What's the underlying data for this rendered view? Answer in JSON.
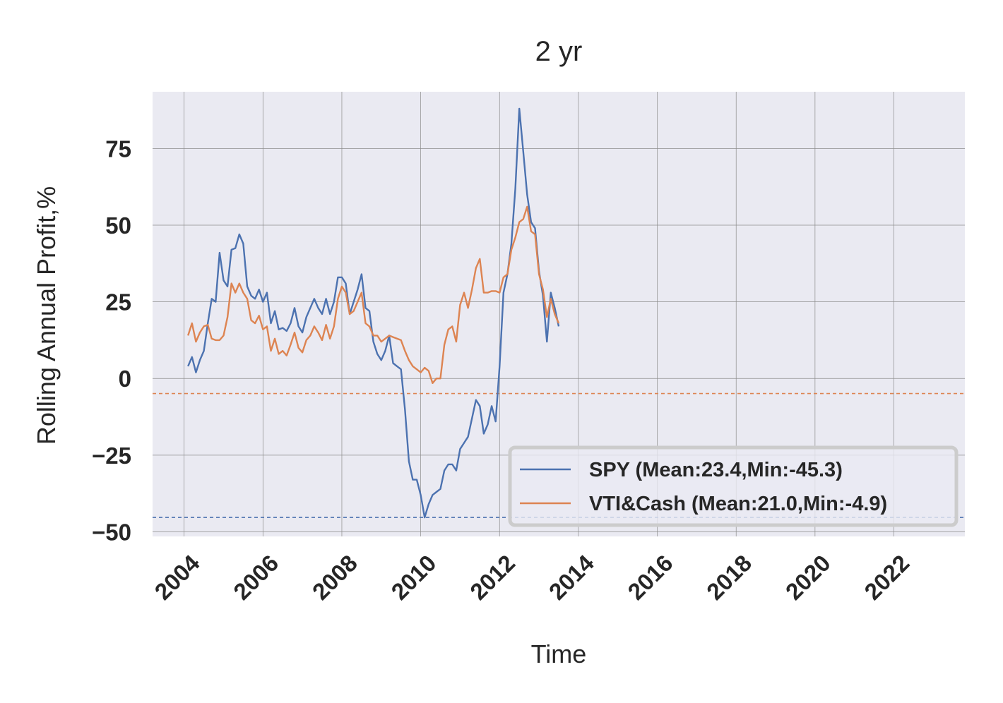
{
  "chart_data": {
    "type": "line",
    "title": "2 yr",
    "xlabel": "Time",
    "ylabel": "Rolling Annual Profit,%",
    "xlim": [
      2003.2,
      2023.8
    ],
    "ylim": [
      -51.5,
      93.5
    ],
    "x_ticks": [
      2004,
      2006,
      2008,
      2010,
      2012,
      2014,
      2016,
      2018,
      2020,
      2022
    ],
    "x_tick_labels": [
      "2004",
      "2006",
      "2008",
      "2010",
      "2012",
      "2014",
      "2016",
      "2018",
      "2020",
      "2022"
    ],
    "y_ticks": [
      -50,
      -25,
      0,
      25,
      50,
      75
    ],
    "y_tick_labels": [
      "−50",
      "−25",
      "0",
      "25",
      "50",
      "75"
    ],
    "grid": true,
    "legend_position": "lower-right",
    "series": [
      {
        "name": "SPY (Mean:23.4,Min:-45.3)",
        "color": "#4c72b0",
        "min_line": -45.3,
        "points": [
          [
            2004.1,
            4
          ],
          [
            2004.2,
            7
          ],
          [
            2004.3,
            2
          ],
          [
            2004.4,
            6
          ],
          [
            2004.5,
            9
          ],
          [
            2004.6,
            18
          ],
          [
            2004.7,
            26
          ],
          [
            2004.8,
            25
          ],
          [
            2004.9,
            41
          ],
          [
            2005.0,
            32
          ],
          [
            2005.1,
            30
          ],
          [
            2005.2,
            42
          ],
          [
            2005.3,
            42.5
          ],
          [
            2005.4,
            47
          ],
          [
            2005.5,
            44
          ],
          [
            2005.6,
            30
          ],
          [
            2005.7,
            27
          ],
          [
            2005.8,
            26
          ],
          [
            2005.9,
            29
          ],
          [
            2006.0,
            25
          ],
          [
            2006.1,
            28
          ],
          [
            2006.2,
            18
          ],
          [
            2006.3,
            22
          ],
          [
            2006.4,
            16
          ],
          [
            2006.5,
            16.5
          ],
          [
            2006.6,
            15.5
          ],
          [
            2006.7,
            18
          ],
          [
            2006.8,
            23
          ],
          [
            2006.9,
            17
          ],
          [
            2007.0,
            15
          ],
          [
            2007.1,
            20
          ],
          [
            2007.2,
            23
          ],
          [
            2007.3,
            26
          ],
          [
            2007.4,
            23
          ],
          [
            2007.5,
            21
          ],
          [
            2007.6,
            26
          ],
          [
            2007.7,
            21
          ],
          [
            2007.8,
            25
          ],
          [
            2007.9,
            33
          ],
          [
            2008.0,
            33
          ],
          [
            2008.1,
            31
          ],
          [
            2008.2,
            21
          ],
          [
            2008.3,
            25
          ],
          [
            2008.4,
            29
          ],
          [
            2008.5,
            34
          ],
          [
            2008.6,
            23
          ],
          [
            2008.7,
            22
          ],
          [
            2008.8,
            12
          ],
          [
            2008.9,
            8
          ],
          [
            2009.0,
            6
          ],
          [
            2009.1,
            9
          ],
          [
            2009.2,
            14
          ],
          [
            2009.3,
            5
          ],
          [
            2009.4,
            4
          ],
          [
            2009.5,
            3
          ],
          [
            2009.6,
            -10
          ],
          [
            2009.7,
            -27
          ],
          [
            2009.8,
            -33
          ],
          [
            2009.9,
            -33
          ],
          [
            2010.0,
            -38
          ],
          [
            2010.1,
            -45.3
          ],
          [
            2010.2,
            -41
          ],
          [
            2010.3,
            -38
          ],
          [
            2010.4,
            -37
          ],
          [
            2010.5,
            -36
          ],
          [
            2010.6,
            -30
          ],
          [
            2010.7,
            -28
          ],
          [
            2010.8,
            -28
          ],
          [
            2010.9,
            -30
          ],
          [
            2011.0,
            -23
          ],
          [
            2011.1,
            -21
          ],
          [
            2011.2,
            -19
          ],
          [
            2011.3,
            -13
          ],
          [
            2011.4,
            -7
          ],
          [
            2011.5,
            -9
          ],
          [
            2011.6,
            -18
          ],
          [
            2011.7,
            -15
          ],
          [
            2011.8,
            -9
          ],
          [
            2011.9,
            -14
          ],
          [
            2012.0,
            4
          ],
          [
            2012.1,
            28
          ],
          [
            2012.2,
            34
          ],
          [
            2012.3,
            44
          ],
          [
            2012.4,
            62
          ],
          [
            2012.5,
            88
          ],
          [
            2012.6,
            74
          ],
          [
            2012.7,
            60
          ],
          [
            2012.8,
            51
          ],
          [
            2012.9,
            49
          ],
          [
            2013.0,
            35
          ],
          [
            2013.1,
            27
          ],
          [
            2013.2,
            12
          ],
          [
            2013.3,
            28
          ],
          [
            2013.4,
            23
          ],
          [
            2013.5,
            17
          ]
        ]
      },
      {
        "name": "VTI&Cash (Mean:21.0,Min:-4.9)",
        "color": "#dd8452",
        "min_line": -4.9,
        "points": [
          [
            2004.1,
            14
          ],
          [
            2004.2,
            18
          ],
          [
            2004.3,
            12
          ],
          [
            2004.4,
            15
          ],
          [
            2004.5,
            17
          ],
          [
            2004.6,
            17.5
          ],
          [
            2004.7,
            13
          ],
          [
            2004.8,
            12.5
          ],
          [
            2004.9,
            12.5
          ],
          [
            2005.0,
            14
          ],
          [
            2005.1,
            20
          ],
          [
            2005.2,
            31
          ],
          [
            2005.3,
            28
          ],
          [
            2005.4,
            31
          ],
          [
            2005.5,
            28
          ],
          [
            2005.6,
            26
          ],
          [
            2005.7,
            19
          ],
          [
            2005.8,
            18
          ],
          [
            2005.9,
            20.5
          ],
          [
            2006.0,
            16
          ],
          [
            2006.1,
            17
          ],
          [
            2006.2,
            9
          ],
          [
            2006.3,
            13
          ],
          [
            2006.4,
            8
          ],
          [
            2006.5,
            9
          ],
          [
            2006.6,
            7.5
          ],
          [
            2006.7,
            11
          ],
          [
            2006.8,
            15
          ],
          [
            2006.9,
            10
          ],
          [
            2007.0,
            8.5
          ],
          [
            2007.1,
            12.5
          ],
          [
            2007.2,
            14
          ],
          [
            2007.3,
            17
          ],
          [
            2007.4,
            15
          ],
          [
            2007.5,
            12.5
          ],
          [
            2007.6,
            17.5
          ],
          [
            2007.7,
            13
          ],
          [
            2007.8,
            17
          ],
          [
            2007.9,
            26
          ],
          [
            2008.0,
            30
          ],
          [
            2008.1,
            28
          ],
          [
            2008.2,
            21
          ],
          [
            2008.3,
            22
          ],
          [
            2008.4,
            25
          ],
          [
            2008.5,
            28
          ],
          [
            2008.6,
            18
          ],
          [
            2008.7,
            17
          ],
          [
            2008.8,
            14
          ],
          [
            2008.9,
            14
          ],
          [
            2009.0,
            12
          ],
          [
            2009.1,
            13
          ],
          [
            2009.2,
            14
          ],
          [
            2009.3,
            13.5
          ],
          [
            2009.4,
            13
          ],
          [
            2009.5,
            12.5
          ],
          [
            2009.6,
            9
          ],
          [
            2009.7,
            6
          ],
          [
            2009.8,
            4
          ],
          [
            2009.9,
            3
          ],
          [
            2010.0,
            2
          ],
          [
            2010.1,
            3.5
          ],
          [
            2010.2,
            2.5
          ],
          [
            2010.3,
            -1.5
          ],
          [
            2010.4,
            0
          ],
          [
            2010.5,
            0
          ],
          [
            2010.6,
            11
          ],
          [
            2010.7,
            16
          ],
          [
            2010.8,
            17
          ],
          [
            2010.9,
            12
          ],
          [
            2011.0,
            24
          ],
          [
            2011.1,
            28
          ],
          [
            2011.2,
            23
          ],
          [
            2011.3,
            29
          ],
          [
            2011.4,
            36
          ],
          [
            2011.5,
            39
          ],
          [
            2011.6,
            28
          ],
          [
            2011.7,
            28
          ],
          [
            2011.8,
            28.5
          ],
          [
            2011.9,
            28.5
          ],
          [
            2012.0,
            28
          ],
          [
            2012.1,
            33
          ],
          [
            2012.2,
            34
          ],
          [
            2012.3,
            42
          ],
          [
            2012.4,
            46
          ],
          [
            2012.5,
            51
          ],
          [
            2012.6,
            52
          ],
          [
            2012.7,
            56
          ],
          [
            2012.8,
            48
          ],
          [
            2012.9,
            47
          ],
          [
            2013.0,
            34
          ],
          [
            2013.1,
            29
          ],
          [
            2013.2,
            20
          ],
          [
            2013.3,
            26
          ],
          [
            2013.4,
            21
          ],
          [
            2013.5,
            18
          ]
        ]
      }
    ]
  }
}
